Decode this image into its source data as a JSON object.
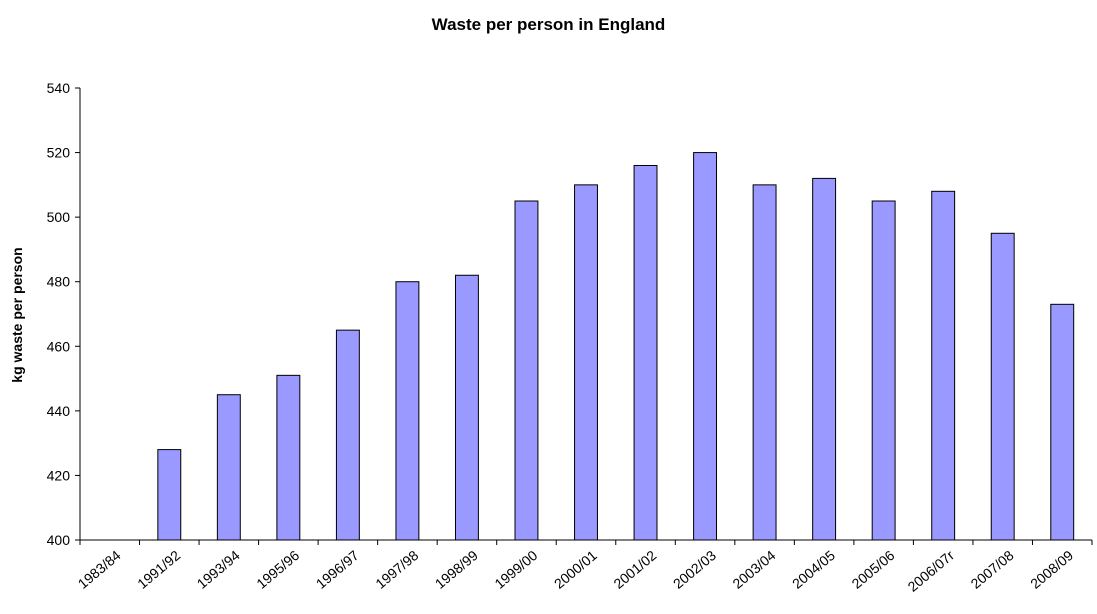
{
  "chart_data": {
    "type": "bar",
    "title": "Waste per person in England",
    "xlabel": "",
    "ylabel": "kg waste per person",
    "categories": [
      "1983/84",
      "1991/92",
      "1993/94",
      "1995/96",
      "1996/97",
      "1997/98",
      "1998/99",
      "1999/00",
      "2000/01",
      "2001/02",
      "2002/03",
      "2003/04",
      "2004/05",
      "2005/06",
      "2006/07r",
      "2007/08",
      "2008/09"
    ],
    "values": [
      null,
      428,
      445,
      451,
      465,
      480,
      482,
      505,
      510,
      516,
      520,
      510,
      512,
      505,
      508,
      495,
      473
    ],
    "ylim": [
      400,
      540
    ],
    "yticks": [
      400,
      420,
      440,
      460,
      480,
      500,
      520,
      540
    ],
    "grid": false,
    "legend": "none",
    "colors": {
      "bar_fill": "#9999ff",
      "bar_stroke": "#000000"
    }
  }
}
